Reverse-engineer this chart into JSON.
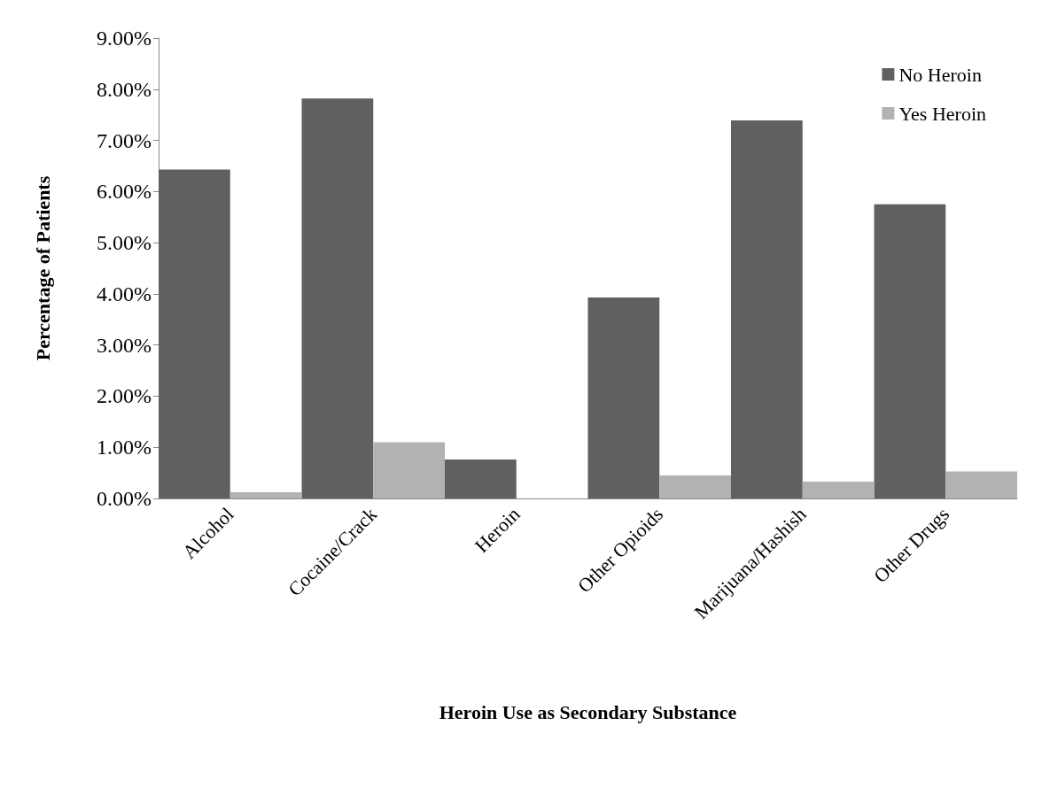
{
  "chart_data": {
    "type": "bar",
    "xlabel": "Heroin Use as Secondary Substance",
    "ylabel": "Percentage of Patients",
    "categories": [
      "Alcohol",
      "Cocaine/Crack",
      "Heroin",
      "Other Opioids",
      "Marijuana/Hashish",
      "Other Drugs"
    ],
    "series": [
      {
        "name": "No Heroin",
        "color": "#606060",
        "values": [
          6.43,
          7.82,
          0.76,
          3.93,
          7.39,
          5.75
        ]
      },
      {
        "name": "Yes Heroin",
        "color": "#b2b2b2",
        "values": [
          0.12,
          1.1,
          0,
          0.45,
          0.33,
          0.53
        ]
      }
    ],
    "ylim": [
      0,
      9
    ],
    "yticks": [
      {
        "value": 0,
        "label": "0.00%"
      },
      {
        "value": 1,
        "label": "1.00%"
      },
      {
        "value": 2,
        "label": "2.00%"
      },
      {
        "value": 3,
        "label": "3.00%"
      },
      {
        "value": 4,
        "label": "4.00%"
      },
      {
        "value": 5,
        "label": "5.00%"
      },
      {
        "value": 6,
        "label": "6.00%"
      },
      {
        "value": 7,
        "label": "7.00%"
      },
      {
        "value": 8,
        "label": "8.00%"
      },
      {
        "value": 9,
        "label": "9.00%"
      }
    ],
    "grid": false,
    "legend": "top right"
  }
}
